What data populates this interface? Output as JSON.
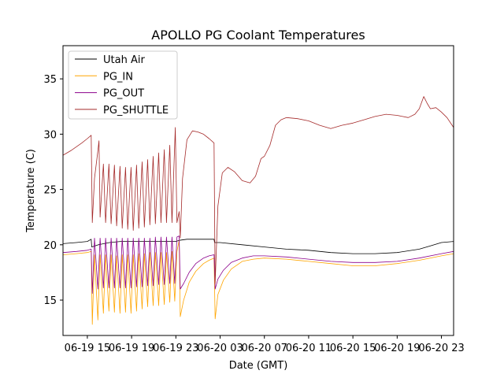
{
  "chart_data": {
    "type": "line",
    "title": "APOLLO PG Coolant Temperatures",
    "xlabel": "Date (GMT)",
    "ylabel": "Temperature (C)",
    "xlim": [
      -2.2,
      33.1
    ],
    "ylim": [
      11.8,
      38.0
    ],
    "x_unit": "hours since 06-19 15",
    "x_ticks": [
      {
        "x": 0,
        "label": "06-19 15"
      },
      {
        "x": 4,
        "label": "06-19 19"
      },
      {
        "x": 8,
        "label": "06-19 23"
      },
      {
        "x": 12,
        "label": "06-20 03"
      },
      {
        "x": 16,
        "label": "06-20 07"
      },
      {
        "x": 20,
        "label": "06-20 11"
      },
      {
        "x": 24,
        "label": "06-20 15"
      },
      {
        "x": 28,
        "label": "06-20 19"
      },
      {
        "x": 32,
        "label": "06-20 23"
      }
    ],
    "y_ticks": [
      15,
      20,
      25,
      30,
      35
    ],
    "legend_position": "top-left",
    "series": [
      {
        "name": "Utah Air",
        "color": "#000000",
        "points": [
          [
            -2.2,
            20.1
          ],
          [
            -1.0,
            20.2
          ],
          [
            0.0,
            20.3
          ],
          [
            0.35,
            20.5
          ],
          [
            0.4,
            19.8
          ],
          [
            1.0,
            20.0
          ],
          [
            2.0,
            20.2
          ],
          [
            3.0,
            20.3
          ],
          [
            4.0,
            20.3
          ],
          [
            5.0,
            20.3
          ],
          [
            6.0,
            20.3
          ],
          [
            7.0,
            20.3
          ],
          [
            7.5,
            20.3
          ],
          [
            8.0,
            20.3
          ],
          [
            8.3,
            20.4
          ],
          [
            9.0,
            20.5
          ],
          [
            10.0,
            20.5
          ],
          [
            11.0,
            20.5
          ],
          [
            11.45,
            20.5
          ],
          [
            11.5,
            20.2
          ],
          [
            12.0,
            20.2
          ],
          [
            14.0,
            20.0
          ],
          [
            16.0,
            19.8
          ],
          [
            18.0,
            19.6
          ],
          [
            20.0,
            19.5
          ],
          [
            22.0,
            19.3
          ],
          [
            24.0,
            19.2
          ],
          [
            26.0,
            19.2
          ],
          [
            28.0,
            19.3
          ],
          [
            30.0,
            19.6
          ],
          [
            31.0,
            19.9
          ],
          [
            32.0,
            20.2
          ],
          [
            33.1,
            20.3
          ]
        ]
      },
      {
        "name": "PG_IN",
        "color": "#FFA500",
        "points": [
          [
            -2.2,
            19.1
          ],
          [
            -1.0,
            19.2
          ],
          [
            0.0,
            19.3
          ],
          [
            0.35,
            19.4
          ],
          [
            0.45,
            12.8
          ],
          [
            0.65,
            19.1
          ],
          [
            0.95,
            13.2
          ],
          [
            1.15,
            19.1
          ],
          [
            1.45,
            13.8
          ],
          [
            1.65,
            19.1
          ],
          [
            1.95,
            14.0
          ],
          [
            2.15,
            19.1
          ],
          [
            2.45,
            13.9
          ],
          [
            2.65,
            19.0
          ],
          [
            2.95,
            13.8
          ],
          [
            3.15,
            19.1
          ],
          [
            3.45,
            13.9
          ],
          [
            3.65,
            19.1
          ],
          [
            3.95,
            13.8
          ],
          [
            4.15,
            19.1
          ],
          [
            4.45,
            14.0
          ],
          [
            4.65,
            19.2
          ],
          [
            4.95,
            14.2
          ],
          [
            5.15,
            19.2
          ],
          [
            5.45,
            14.4
          ],
          [
            5.65,
            19.3
          ],
          [
            5.95,
            14.5
          ],
          [
            6.15,
            19.3
          ],
          [
            6.45,
            14.5
          ],
          [
            6.65,
            19.3
          ],
          [
            6.95,
            14.6
          ],
          [
            7.15,
            19.3
          ],
          [
            7.45,
            14.8
          ],
          [
            7.65,
            19.4
          ],
          [
            7.9,
            14.9
          ],
          [
            8.1,
            19.4
          ],
          [
            8.3,
            20.4
          ],
          [
            8.4,
            13.5
          ],
          [
            8.7,
            15.0
          ],
          [
            9.2,
            16.6
          ],
          [
            9.8,
            17.6
          ],
          [
            10.5,
            18.3
          ],
          [
            11.0,
            18.6
          ],
          [
            11.45,
            18.8
          ],
          [
            11.55,
            13.3
          ],
          [
            11.8,
            15.5
          ],
          [
            12.3,
            16.8
          ],
          [
            13.0,
            17.8
          ],
          [
            14.0,
            18.5
          ],
          [
            15.0,
            18.7
          ],
          [
            16.0,
            18.8
          ],
          [
            18.0,
            18.7
          ],
          [
            20.0,
            18.5
          ],
          [
            22.0,
            18.3
          ],
          [
            24.0,
            18.1
          ],
          [
            26.0,
            18.1
          ],
          [
            28.0,
            18.3
          ],
          [
            30.0,
            18.6
          ],
          [
            32.0,
            19.0
          ],
          [
            33.1,
            19.2
          ]
        ]
      },
      {
        "name": "PG_OUT",
        "color": "#8B008B",
        "points": [
          [
            -2.2,
            19.3
          ],
          [
            -1.0,
            19.4
          ],
          [
            0.0,
            19.5
          ],
          [
            0.35,
            19.6
          ],
          [
            0.45,
            15.6
          ],
          [
            0.65,
            20.6
          ],
          [
            0.95,
            16.0
          ],
          [
            1.15,
            20.6
          ],
          [
            1.45,
            16.1
          ],
          [
            1.65,
            20.6
          ],
          [
            1.95,
            16.1
          ],
          [
            2.15,
            20.6
          ],
          [
            2.45,
            16.1
          ],
          [
            2.65,
            20.6
          ],
          [
            2.95,
            16.1
          ],
          [
            3.15,
            20.6
          ],
          [
            3.45,
            16.1
          ],
          [
            3.65,
            20.6
          ],
          [
            3.95,
            16.1
          ],
          [
            4.15,
            20.6
          ],
          [
            4.45,
            16.2
          ],
          [
            4.65,
            20.6
          ],
          [
            4.95,
            16.2
          ],
          [
            5.15,
            20.6
          ],
          [
            5.45,
            16.3
          ],
          [
            5.65,
            20.6
          ],
          [
            5.95,
            16.3
          ],
          [
            6.15,
            20.7
          ],
          [
            6.45,
            16.4
          ],
          [
            6.65,
            20.7
          ],
          [
            6.95,
            16.4
          ],
          [
            7.15,
            20.7
          ],
          [
            7.45,
            16.5
          ],
          [
            7.65,
            20.7
          ],
          [
            7.9,
            16.5
          ],
          [
            8.1,
            20.7
          ],
          [
            8.3,
            20.8
          ],
          [
            8.4,
            16.0
          ],
          [
            8.7,
            16.5
          ],
          [
            9.2,
            17.5
          ],
          [
            9.8,
            18.3
          ],
          [
            10.5,
            18.8
          ],
          [
            11.0,
            19.0
          ],
          [
            11.45,
            19.1
          ],
          [
            11.55,
            16.0
          ],
          [
            11.8,
            16.9
          ],
          [
            12.3,
            17.7
          ],
          [
            13.0,
            18.4
          ],
          [
            14.0,
            18.8
          ],
          [
            15.0,
            19.0
          ],
          [
            16.0,
            19.0
          ],
          [
            18.0,
            18.9
          ],
          [
            20.0,
            18.7
          ],
          [
            22.0,
            18.5
          ],
          [
            24.0,
            18.4
          ],
          [
            26.0,
            18.4
          ],
          [
            28.0,
            18.5
          ],
          [
            30.0,
            18.8
          ],
          [
            32.0,
            19.2
          ],
          [
            33.1,
            19.4
          ]
        ]
      },
      {
        "name": "PG_SHUTTLE",
        "color": "#A52A2A",
        "points": [
          [
            -2.2,
            28.1
          ],
          [
            -1.5,
            28.5
          ],
          [
            -0.5,
            29.2
          ],
          [
            0.0,
            29.6
          ],
          [
            0.35,
            29.9
          ],
          [
            0.45,
            22.0
          ],
          [
            0.65,
            26.0
          ],
          [
            0.95,
            28.5
          ],
          [
            1.05,
            29.4
          ],
          [
            1.15,
            22.5
          ],
          [
            1.45,
            27.3
          ],
          [
            1.65,
            22.0
          ],
          [
            1.95,
            27.3
          ],
          [
            2.15,
            21.9
          ],
          [
            2.45,
            27.2
          ],
          [
            2.65,
            21.7
          ],
          [
            2.95,
            27.1
          ],
          [
            3.15,
            21.5
          ],
          [
            3.45,
            27.0
          ],
          [
            3.65,
            21.4
          ],
          [
            3.95,
            27.0
          ],
          [
            4.15,
            21.3
          ],
          [
            4.45,
            27.2
          ],
          [
            4.65,
            21.5
          ],
          [
            4.95,
            27.5
          ],
          [
            5.15,
            21.6
          ],
          [
            5.45,
            27.7
          ],
          [
            5.65,
            21.8
          ],
          [
            5.95,
            28.0
          ],
          [
            6.15,
            21.9
          ],
          [
            6.45,
            28.3
          ],
          [
            6.65,
            22.0
          ],
          [
            6.95,
            28.6
          ],
          [
            7.15,
            22.0
          ],
          [
            7.45,
            29.0
          ],
          [
            7.65,
            22.0
          ],
          [
            7.95,
            30.6
          ],
          [
            8.1,
            22.0
          ],
          [
            8.3,
            23.0
          ],
          [
            8.4,
            20.6
          ],
          [
            8.6,
            26.0
          ],
          [
            9.0,
            29.5
          ],
          [
            9.5,
            30.3
          ],
          [
            10.0,
            30.2
          ],
          [
            10.5,
            30.0
          ],
          [
            11.0,
            29.6
          ],
          [
            11.45,
            29.2
          ],
          [
            11.55,
            16.5
          ],
          [
            11.8,
            23.5
          ],
          [
            12.2,
            26.5
          ],
          [
            12.7,
            27.0
          ],
          [
            13.3,
            26.6
          ],
          [
            14.0,
            25.8
          ],
          [
            14.7,
            25.6
          ],
          [
            15.2,
            26.2
          ],
          [
            15.7,
            27.8
          ],
          [
            16.0,
            28.0
          ],
          [
            16.5,
            29.0
          ],
          [
            17.0,
            30.8
          ],
          [
            17.5,
            31.3
          ],
          [
            18.0,
            31.5
          ],
          [
            19.0,
            31.4
          ],
          [
            20.0,
            31.2
          ],
          [
            21.0,
            30.8
          ],
          [
            22.0,
            30.5
          ],
          [
            23.0,
            30.8
          ],
          [
            24.0,
            31.0
          ],
          [
            25.0,
            31.3
          ],
          [
            26.0,
            31.6
          ],
          [
            27.0,
            31.8
          ],
          [
            28.0,
            31.7
          ],
          [
            29.0,
            31.5
          ],
          [
            29.6,
            31.8
          ],
          [
            30.0,
            32.3
          ],
          [
            30.4,
            33.4
          ],
          [
            30.7,
            32.8
          ],
          [
            31.0,
            32.3
          ],
          [
            31.5,
            32.4
          ],
          [
            32.0,
            32.0
          ],
          [
            32.5,
            31.5
          ],
          [
            33.1,
            30.6
          ]
        ]
      }
    ]
  }
}
